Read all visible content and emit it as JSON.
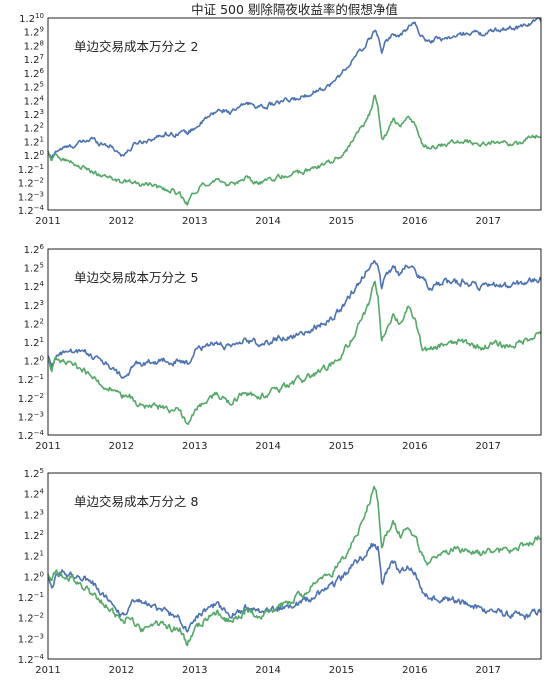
{
  "chart_data": [
    {
      "type": "line",
      "title": "中证 500 剔除隔夜收益率的假想净值",
      "annotation": "单边交易成本万分之 2",
      "yscale": "log base 1.2",
      "ylim_exp": [
        -4,
        10
      ],
      "yticks_exp": [
        -4,
        -3,
        -2,
        -1,
        0,
        1,
        2,
        3,
        4,
        5,
        6,
        7,
        8,
        9,
        10
      ],
      "xlim": [
        2011.0,
        2017.72
      ],
      "xticks": [
        2011,
        2012,
        2013,
        2014,
        2015,
        2016,
        2017
      ],
      "grid": false,
      "series": [
        {
          "color": "#4c72b0",
          "x": [
            2011.0,
            2011.05,
            2011.1,
            2011.2,
            2011.3,
            2011.4,
            2011.5,
            2011.6,
            2011.7,
            2011.8,
            2011.9,
            2012.0,
            2012.1,
            2012.2,
            2012.3,
            2012.4,
            2012.5,
            2012.6,
            2012.7,
            2012.8,
            2012.9,
            2013.0,
            2013.1,
            2013.2,
            2013.3,
            2013.4,
            2013.5,
            2013.6,
            2013.7,
            2013.8,
            2013.9,
            2014.0,
            2014.1,
            2014.2,
            2014.3,
            2014.4,
            2014.5,
            2014.6,
            2014.7,
            2014.8,
            2014.9,
            2015.0,
            2015.1,
            2015.2,
            2015.3,
            2015.4,
            2015.45,
            2015.5,
            2015.55,
            2015.6,
            2015.7,
            2015.8,
            2015.9,
            2016.0,
            2016.1,
            2016.2,
            2016.3,
            2016.4,
            2016.5,
            2016.6,
            2016.7,
            2016.8,
            2016.9,
            2017.0,
            2017.1,
            2017.2,
            2017.3,
            2017.4,
            2017.5,
            2017.6,
            2017.7
          ],
          "y": [
            0.2,
            -0.3,
            0.3,
            0.5,
            0.6,
            0.8,
            1.0,
            1.2,
            0.9,
            0.8,
            0.5,
            0.0,
            0.3,
            0.9,
            1.0,
            1.2,
            1.3,
            1.6,
            1.5,
            1.7,
            1.6,
            2.0,
            2.4,
            2.8,
            3.2,
            3.3,
            3.1,
            3.4,
            3.8,
            3.7,
            3.5,
            3.6,
            3.8,
            3.9,
            4.0,
            4.1,
            4.3,
            4.6,
            4.8,
            5.0,
            5.3,
            6.0,
            6.6,
            7.2,
            7.8,
            8.6,
            9.0,
            8.7,
            7.5,
            8.3,
            8.8,
            8.6,
            9.3,
            9.6,
            8.6,
            8.3,
            8.5,
            8.5,
            8.6,
            8.7,
            8.9,
            9.0,
            8.8,
            8.9,
            9.1,
            9.2,
            9.3,
            9.3,
            9.5,
            9.7,
            9.9
          ]
        },
        {
          "color": "#55a868",
          "x": [
            2011.0,
            2011.05,
            2011.1,
            2011.2,
            2011.3,
            2011.4,
            2011.5,
            2011.6,
            2011.7,
            2011.8,
            2011.9,
            2012.0,
            2012.1,
            2012.2,
            2012.3,
            2012.4,
            2012.5,
            2012.6,
            2012.7,
            2012.8,
            2012.9,
            2013.0,
            2013.1,
            2013.2,
            2013.3,
            2013.4,
            2013.5,
            2013.6,
            2013.7,
            2013.8,
            2013.9,
            2014.0,
            2014.1,
            2014.2,
            2014.3,
            2014.4,
            2014.5,
            2014.6,
            2014.7,
            2014.8,
            2014.9,
            2015.0,
            2015.1,
            2015.2,
            2015.3,
            2015.4,
            2015.45,
            2015.5,
            2015.55,
            2015.6,
            2015.7,
            2015.8,
            2015.9,
            2016.0,
            2016.1,
            2016.2,
            2016.3,
            2016.4,
            2016.5,
            2016.6,
            2016.7,
            2016.8,
            2016.9,
            2017.0,
            2017.1,
            2017.2,
            2017.3,
            2017.4,
            2017.5,
            2017.6,
            2017.7
          ],
          "y": [
            0.2,
            -0.4,
            0.0,
            -0.2,
            -0.5,
            -0.8,
            -0.9,
            -1.2,
            -1.4,
            -1.7,
            -1.8,
            -2.0,
            -1.9,
            -2.1,
            -2.2,
            -2.1,
            -2.4,
            -2.5,
            -2.6,
            -2.9,
            -3.5,
            -2.6,
            -2.2,
            -2.0,
            -1.8,
            -2.1,
            -2.2,
            -2.0,
            -1.7,
            -1.9,
            -2.0,
            -1.9,
            -1.7,
            -1.5,
            -1.4,
            -1.3,
            -1.2,
            -1.0,
            -0.8,
            -0.6,
            -0.3,
            0.0,
            0.6,
            1.4,
            2.2,
            3.2,
            4.3,
            3.4,
            1.0,
            1.5,
            2.6,
            2.0,
            2.8,
            2.2,
            0.8,
            0.5,
            0.7,
            0.8,
            0.9,
            1.0,
            1.0,
            0.9,
            0.8,
            0.9,
            1.0,
            0.9,
            0.8,
            0.9,
            1.1,
            1.3,
            1.5
          ]
        }
      ]
    },
    {
      "type": "line",
      "title": "",
      "annotation": "单边交易成本万分之 5",
      "yscale": "log base 1.2",
      "ylim_exp": [
        -4,
        6
      ],
      "yticks_exp": [
        -4,
        -3,
        -2,
        -1,
        0,
        1,
        2,
        3,
        4,
        5,
        6
      ],
      "xlim": [
        2011.0,
        2017.72
      ],
      "xticks": [
        2011,
        2012,
        2013,
        2014,
        2015,
        2016,
        2017
      ],
      "grid": false,
      "series": [
        {
          "color": "#4c72b0",
          "x": [
            2011.0,
            2011.05,
            2011.1,
            2011.2,
            2011.3,
            2011.4,
            2011.5,
            2011.6,
            2011.7,
            2011.8,
            2011.9,
            2012.0,
            2012.1,
            2012.2,
            2012.3,
            2012.4,
            2012.5,
            2012.6,
            2012.7,
            2012.8,
            2012.9,
            2013.0,
            2013.1,
            2013.2,
            2013.3,
            2013.4,
            2013.5,
            2013.6,
            2013.7,
            2013.8,
            2013.9,
            2014.0,
            2014.1,
            2014.2,
            2014.3,
            2014.4,
            2014.5,
            2014.6,
            2014.7,
            2014.8,
            2014.9,
            2015.0,
            2015.1,
            2015.2,
            2015.3,
            2015.4,
            2015.45,
            2015.5,
            2015.55,
            2015.6,
            2015.7,
            2015.8,
            2015.9,
            2016.0,
            2016.1,
            2016.2,
            2016.3,
            2016.4,
            2016.5,
            2016.6,
            2016.7,
            2016.8,
            2016.9,
            2017.0,
            2017.1,
            2017.2,
            2017.3,
            2017.4,
            2017.5,
            2017.6,
            2017.7
          ],
          "y": [
            0.2,
            -0.3,
            0.2,
            0.4,
            0.5,
            0.4,
            0.5,
            0.3,
            0.0,
            -0.2,
            -0.5,
            -0.9,
            -0.7,
            -0.2,
            -0.1,
            0.0,
            -0.1,
            0.1,
            -0.1,
            -0.1,
            -0.2,
            0.4,
            0.7,
            0.9,
            1.0,
            0.8,
            0.6,
            0.9,
            1.1,
            1.0,
            0.9,
            1.0,
            1.2,
            1.2,
            1.3,
            1.4,
            1.5,
            1.7,
            1.9,
            2.1,
            2.4,
            2.8,
            3.4,
            4.0,
            4.6,
            5.2,
            5.5,
            5.2,
            3.8,
            4.5,
            5.0,
            4.6,
            5.2,
            5.0,
            4.3,
            4.0,
            4.1,
            4.2,
            4.2,
            4.2,
            4.3,
            4.1,
            3.9,
            4.0,
            4.1,
            4.0,
            4.0,
            4.1,
            4.2,
            4.3,
            4.4
          ]
        },
        {
          "color": "#55a868",
          "x": [
            2011.0,
            2011.05,
            2011.1,
            2011.2,
            2011.3,
            2011.4,
            2011.5,
            2011.6,
            2011.7,
            2011.8,
            2011.9,
            2012.0,
            2012.1,
            2012.2,
            2012.3,
            2012.4,
            2012.5,
            2012.6,
            2012.7,
            2012.8,
            2012.9,
            2013.0,
            2013.1,
            2013.2,
            2013.3,
            2013.4,
            2013.5,
            2013.6,
            2013.7,
            2013.8,
            2013.9,
            2014.0,
            2014.1,
            2014.2,
            2014.3,
            2014.4,
            2014.5,
            2014.6,
            2014.7,
            2014.8,
            2014.9,
            2015.0,
            2015.1,
            2015.2,
            2015.3,
            2015.4,
            2015.45,
            2015.5,
            2015.55,
            2015.6,
            2015.7,
            2015.8,
            2015.9,
            2016.0,
            2016.1,
            2016.2,
            2016.3,
            2016.4,
            2016.5,
            2016.6,
            2016.7,
            2016.8,
            2016.9,
            2017.0,
            2017.1,
            2017.2,
            2017.3,
            2017.4,
            2017.5,
            2017.6,
            2017.7
          ],
          "y": [
            0.1,
            -0.5,
            0.0,
            -0.1,
            -0.1,
            -0.3,
            -0.5,
            -0.9,
            -1.2,
            -1.4,
            -1.6,
            -2.0,
            -1.8,
            -2.4,
            -2.5,
            -2.4,
            -2.5,
            -2.6,
            -2.7,
            -2.7,
            -3.4,
            -2.6,
            -2.3,
            -2.0,
            -1.8,
            -2.1,
            -2.2,
            -2.0,
            -1.7,
            -1.8,
            -1.9,
            -1.8,
            -1.6,
            -1.4,
            -1.3,
            -1.1,
            -1.0,
            -0.8,
            -0.6,
            -0.4,
            -0.1,
            0.3,
            0.9,
            1.6,
            2.4,
            3.3,
            4.3,
            3.4,
            1.0,
            1.6,
            2.5,
            2.0,
            2.8,
            2.2,
            0.7,
            0.5,
            0.7,
            0.9,
            0.9,
            1.0,
            1.0,
            0.8,
            0.7,
            0.8,
            0.9,
            0.8,
            0.8,
            0.9,
            1.1,
            1.3,
            1.5
          ]
        }
      ]
    },
    {
      "type": "line",
      "title": "",
      "annotation": "单边交易成本万分之 8",
      "yscale": "log base 1.2",
      "ylim_exp": [
        -4,
        5
      ],
      "yticks_exp": [
        -4,
        -3,
        -2,
        -1,
        0,
        1,
        2,
        3,
        4,
        5
      ],
      "xlim": [
        2011.0,
        2017.72
      ],
      "xticks": [
        2011,
        2012,
        2013,
        2014,
        2015,
        2016,
        2017
      ],
      "grid": false,
      "series": [
        {
          "color": "#4c72b0",
          "x": [
            2011.0,
            2011.05,
            2011.1,
            2011.2,
            2011.3,
            2011.4,
            2011.5,
            2011.6,
            2011.7,
            2011.8,
            2011.9,
            2012.0,
            2012.1,
            2012.2,
            2012.3,
            2012.4,
            2012.5,
            2012.6,
            2012.7,
            2012.8,
            2012.9,
            2013.0,
            2013.1,
            2013.2,
            2013.3,
            2013.4,
            2013.5,
            2013.6,
            2013.7,
            2013.8,
            2013.9,
            2014.0,
            2014.1,
            2014.2,
            2014.3,
            2014.4,
            2014.5,
            2014.6,
            2014.7,
            2014.8,
            2014.9,
            2015.0,
            2015.1,
            2015.2,
            2015.3,
            2015.4,
            2015.45,
            2015.5,
            2015.55,
            2015.6,
            2015.7,
            2015.8,
            2015.9,
            2016.0,
            2016.1,
            2016.2,
            2016.3,
            2016.4,
            2016.5,
            2016.6,
            2016.7,
            2016.8,
            2016.9,
            2017.0,
            2017.1,
            2017.2,
            2017.3,
            2017.4,
            2017.5,
            2017.6,
            2017.7
          ],
          "y": [
            0.1,
            -0.4,
            0.0,
            0.2,
            0.1,
            -0.1,
            0.0,
            -0.3,
            -0.7,
            -1.0,
            -1.3,
            -1.9,
            -1.5,
            -1.2,
            -1.3,
            -1.4,
            -1.6,
            -1.7,
            -1.9,
            -2.0,
            -2.6,
            -2.0,
            -1.7,
            -1.5,
            -1.4,
            -1.7,
            -1.9,
            -1.7,
            -1.5,
            -1.6,
            -1.8,
            -1.7,
            -1.6,
            -1.5,
            -1.4,
            -1.3,
            -1.2,
            -1.0,
            -0.8,
            -0.6,
            -0.4,
            -0.1,
            0.3,
            0.7,
            1.0,
            1.5,
            1.6,
            1.4,
            -0.4,
            0.0,
            0.7,
            0.2,
            0.5,
            0.2,
            -0.8,
            -1.0,
            -1.0,
            -1.1,
            -1.1,
            -1.2,
            -1.3,
            -1.4,
            -1.6,
            -1.6,
            -1.7,
            -1.8,
            -1.9,
            -1.9,
            -2.0,
            -1.8,
            -1.7
          ]
        },
        {
          "color": "#55a868",
          "x": [
            2011.0,
            2011.05,
            2011.1,
            2011.2,
            2011.3,
            2011.4,
            2011.5,
            2011.6,
            2011.7,
            2011.8,
            2011.9,
            2012.0,
            2012.1,
            2012.2,
            2012.3,
            2012.4,
            2012.5,
            2012.6,
            2012.7,
            2012.8,
            2012.9,
            2013.0,
            2013.1,
            2013.2,
            2013.3,
            2013.4,
            2013.5,
            2013.6,
            2013.7,
            2013.8,
            2013.9,
            2014.0,
            2014.1,
            2014.2,
            2014.3,
            2014.4,
            2014.5,
            2014.6,
            2014.7,
            2014.8,
            2014.9,
            2015.0,
            2015.1,
            2015.2,
            2015.3,
            2015.4,
            2015.45,
            2015.5,
            2015.55,
            2015.6,
            2015.7,
            2015.8,
            2015.9,
            2016.0,
            2016.1,
            2016.2,
            2016.3,
            2016.4,
            2016.5,
            2016.6,
            2016.7,
            2016.8,
            2016.9,
            2017.0,
            2017.1,
            2017.2,
            2017.3,
            2017.4,
            2017.5,
            2017.6,
            2017.7
          ],
          "y": [
            0.1,
            -0.4,
            0.2,
            0.1,
            0.0,
            -0.3,
            -0.5,
            -0.9,
            -1.2,
            -1.5,
            -1.8,
            -2.2,
            -2.0,
            -2.4,
            -2.6,
            -2.3,
            -2.3,
            -2.4,
            -2.5,
            -2.5,
            -3.3,
            -2.5,
            -2.2,
            -2.0,
            -1.8,
            -2.1,
            -2.2,
            -2.0,
            -1.7,
            -1.8,
            -1.9,
            -1.8,
            -1.6,
            -1.4,
            -1.2,
            -1.0,
            -0.8,
            -0.5,
            -0.3,
            0.0,
            0.3,
            0.7,
            1.3,
            2.0,
            2.8,
            3.8,
            4.6,
            3.7,
            1.4,
            2.0,
            2.7,
            2.0,
            2.5,
            2.0,
            0.9,
            0.7,
            0.9,
            1.1,
            1.2,
            1.3,
            1.3,
            1.2,
            1.1,
            1.2,
            1.3,
            1.2,
            1.2,
            1.3,
            1.5,
            1.7,
            1.9
          ]
        }
      ]
    }
  ],
  "tick_base": "1.2"
}
